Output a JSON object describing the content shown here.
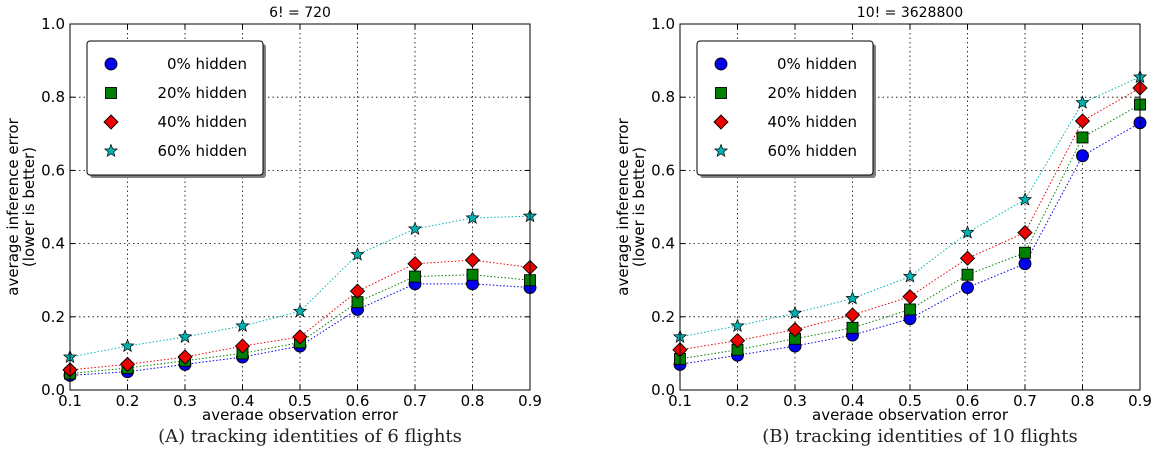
{
  "chart_data": [
    {
      "type": "line",
      "title": "6! = 720",
      "xlabel": "average observation error",
      "ylabel_lines": [
        "average inference error",
        "(lower is better)"
      ],
      "xlim": [
        0.1,
        0.9
      ],
      "ylim": [
        0.0,
        1.0
      ],
      "xticks": [
        "0.1",
        "0.2",
        "0.3",
        "0.4",
        "0.5",
        "0.6",
        "0.7",
        "0.8",
        "0.9"
      ],
      "yticks": [
        "0.0",
        "0.2",
        "0.4",
        "0.6",
        "0.8",
        "1.0"
      ],
      "grid": true,
      "legend_position": "top-left",
      "x": [
        0.1,
        0.2,
        0.3,
        0.4,
        0.5,
        0.6,
        0.7,
        0.8,
        0.9
      ],
      "series": [
        {
          "name": "0% hidden",
          "marker": "circle",
          "color": "#0000ee",
          "values": [
            0.04,
            0.05,
            0.07,
            0.09,
            0.12,
            0.22,
            0.29,
            0.29,
            0.28
          ]
        },
        {
          "name": "20% hidden",
          "marker": "square",
          "color": "#008000",
          "values": [
            0.045,
            0.06,
            0.08,
            0.1,
            0.13,
            0.24,
            0.31,
            0.315,
            0.3
          ]
        },
        {
          "name": "40% hidden",
          "marker": "diamond",
          "color": "#ee0000",
          "values": [
            0.055,
            0.07,
            0.09,
            0.12,
            0.145,
            0.27,
            0.345,
            0.355,
            0.335
          ]
        },
        {
          "name": "60% hidden",
          "marker": "star",
          "color": "#00b3b3",
          "values": [
            0.09,
            0.12,
            0.145,
            0.175,
            0.215,
            0.37,
            0.44,
            0.47,
            0.475
          ]
        }
      ],
      "caption": "(A) tracking identities of 6 flights"
    },
    {
      "type": "line",
      "title": "10! = 3628800",
      "xlabel": "average observation error",
      "ylabel_lines": [
        "average inference error",
        "(lower is better)"
      ],
      "xlim": [
        0.1,
        0.9
      ],
      "ylim": [
        0.0,
        1.0
      ],
      "xticks": [
        "0.1",
        "0.2",
        "0.3",
        "0.4",
        "0.5",
        "0.6",
        "0.7",
        "0.8",
        "0.9"
      ],
      "yticks": [
        "0.0",
        "0.2",
        "0.4",
        "0.6",
        "0.8",
        "1.0"
      ],
      "grid": true,
      "legend_position": "top-left",
      "x": [
        0.1,
        0.2,
        0.3,
        0.4,
        0.5,
        0.6,
        0.7,
        0.8,
        0.9
      ],
      "series": [
        {
          "name": "0% hidden",
          "marker": "circle",
          "color": "#0000ee",
          "values": [
            0.07,
            0.095,
            0.12,
            0.15,
            0.195,
            0.28,
            0.345,
            0.64,
            0.73
          ]
        },
        {
          "name": "20% hidden",
          "marker": "square",
          "color": "#008000",
          "values": [
            0.085,
            0.11,
            0.14,
            0.17,
            0.22,
            0.315,
            0.375,
            0.69,
            0.78
          ]
        },
        {
          "name": "40% hidden",
          "marker": "diamond",
          "color": "#ee0000",
          "values": [
            0.11,
            0.135,
            0.165,
            0.205,
            0.255,
            0.36,
            0.43,
            0.735,
            0.825
          ]
        },
        {
          "name": "60% hidden",
          "marker": "star",
          "color": "#00b3b3",
          "values": [
            0.145,
            0.175,
            0.21,
            0.25,
            0.31,
            0.43,
            0.52,
            0.785,
            0.855
          ]
        }
      ],
      "caption": "(B) tracking identities of 10 flights"
    }
  ]
}
